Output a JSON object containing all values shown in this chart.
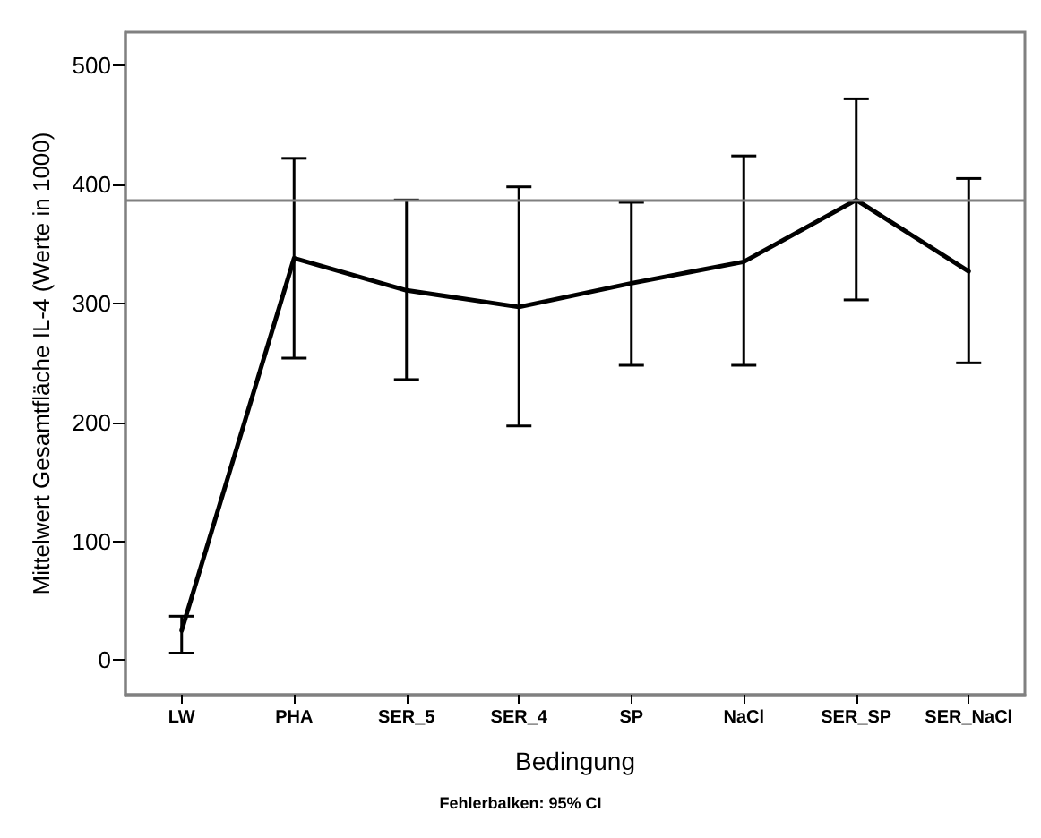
{
  "chart_data": {
    "type": "line",
    "xlabel": "Bedingung",
    "ylabel": "Mittelwert Gesamtfläche IL-4 (Werte in 1000)",
    "categories": [
      "LW",
      "PHA",
      "SER_5",
      "SER_4",
      "SP",
      "NaCl",
      "SER_SP",
      "SER_NaCl"
    ],
    "series": [
      {
        "color": "#000000",
        "values": [
          25,
          338,
          311,
          297,
          317,
          335,
          387,
          327
        ],
        "errors": [
          [
            6,
            37
          ],
          [
            254,
            422
          ],
          [
            236,
            387
          ],
          [
            197,
            398
          ],
          [
            248,
            385
          ],
          [
            248,
            424
          ],
          [
            303,
            472
          ],
          [
            250,
            405
          ]
        ]
      }
    ],
    "ylim": [
      -29,
      528
    ],
    "yticks": [
      0,
      100,
      200,
      300,
      400,
      500
    ],
    "ref_lines": [
      {
        "axis": "y",
        "value": 387,
        "color": "#808080"
      }
    ],
    "annotations": [
      "Fehlerbalken: 95% CI"
    ],
    "marker": "none",
    "line_style": "solid",
    "grid": false
  }
}
